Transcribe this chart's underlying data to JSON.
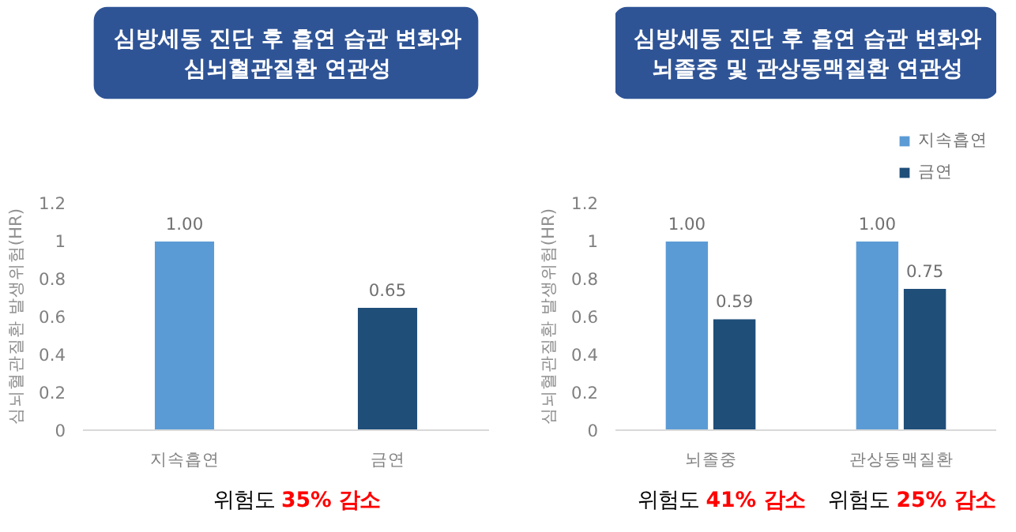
{
  "chart_data": [
    {
      "type": "bar",
      "title": "심방세동 진단 후 흡연 습관 변화와\n심뇌혈관질환 연관성",
      "ylabel": "심뇌혈관질환 발생위험(HR)",
      "categories": [
        "지속흡연",
        "금연"
      ],
      "values": [
        1.0,
        0.65
      ],
      "colors": [
        "#5b9bd5",
        "#1f4e79"
      ],
      "value_labels": [
        "1.00",
        "0.65"
      ],
      "ylim": [
        0,
        1.2
      ],
      "yticks": [
        0,
        {
          "value": 0.2,
          "label": "0.2"
        },
        {
          "value": 0.4,
          "label": "0.4"
        },
        {
          "value": 0.6,
          "label": "0.6"
        },
        {
          "value": 0.8,
          "label": "0.8"
        },
        1,
        {
          "value": 1.2,
          "label": "1.2"
        }
      ],
      "grid": false,
      "annotations": [
        "위험도 35% 감소"
      ]
    },
    {
      "type": "bar",
      "title": "심방세동 진단 후 흡연 습관 변화와\n뇌졸중 및 관상동맥질환 연관성",
      "ylabel": "심뇌혈관질환 발생위험(HR)",
      "categories": [
        "뇌졸중",
        "관상동맥질환"
      ],
      "series": [
        {
          "name": "지속흡연",
          "color": "#5b9bd5",
          "values": [
            1.0,
            1.0
          ],
          "value_labels": [
            "1.00",
            "1.00"
          ]
        },
        {
          "name": "금연",
          "color": "#1f4e79",
          "values": [
            0.59,
            0.75
          ],
          "value_labels": [
            "0.59",
            "0.75"
          ]
        }
      ],
      "ylim": [
        0,
        1.2
      ],
      "yticks": [
        0,
        {
          "value": 0.2,
          "label": "0.2"
        },
        {
          "value": 0.4,
          "label": "0.4"
        },
        {
          "value": 0.6,
          "label": "0.6"
        },
        {
          "value": 0.8,
          "label": "0.8"
        },
        1,
        {
          "value": 1.2,
          "label": "1.2"
        }
      ],
      "grid": false,
      "legend": "top right",
      "annotations": [
        "위험도 41% 감소",
        "위험도 25% 감소"
      ]
    }
  ]
}
